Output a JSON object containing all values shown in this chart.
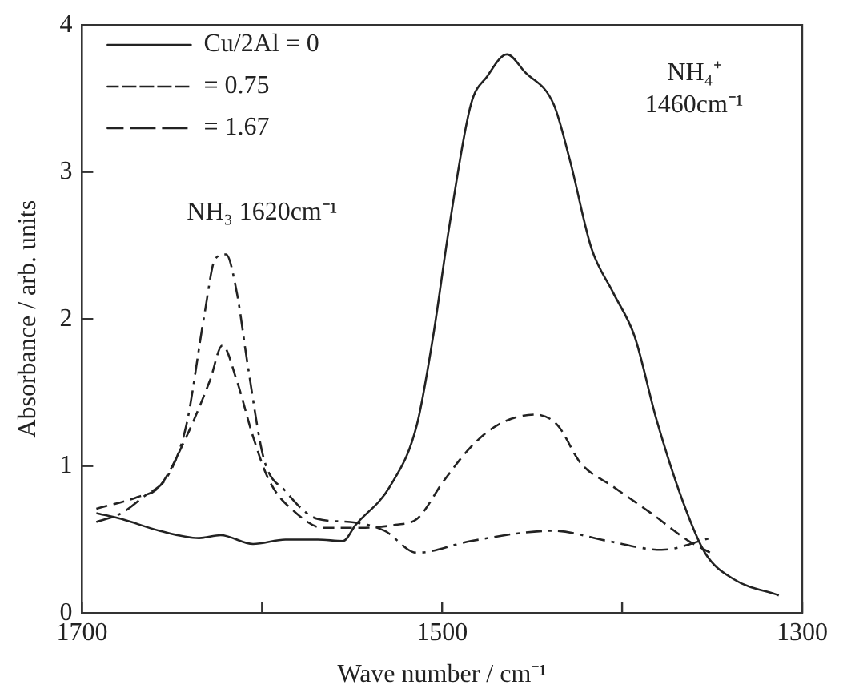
{
  "chart_data": {
    "type": "line",
    "xlabel": "Wave number / cm⁻¹",
    "ylabel": "Absorbance / arb. units",
    "xlim": [
      1700,
      1300
    ],
    "xticks": [
      1700,
      {
        "value": 1600,
        "label": null
      },
      1500,
      {
        "value": 1400,
        "label": null
      },
      1300
    ],
    "ylim": [
      0,
      4
    ],
    "yticks": [
      0,
      1,
      2,
      3,
      4
    ],
    "legend": "top left",
    "marker": "none",
    "annotations": [
      "NH₃ 1620cm⁻¹",
      "NH₄⁺\n1460cm⁻¹"
    ],
    "series": [
      {
        "name": "Cu/2Al = 0",
        "color": "#222222",
        "line_style": "solid",
        "x": [
          1692,
          1678,
          1657,
          1635,
          1623,
          1605,
          1587,
          1569,
          1555,
          1548,
          1529,
          1514,
          1505,
          1496,
          1484,
          1475,
          1464,
          1454,
          1438,
          1429,
          1417,
          1405,
          1393,
          1381,
          1366,
          1354,
          1338,
          1313
        ],
        "values": [
          0.68,
          0.64,
          0.56,
          0.51,
          0.53,
          0.47,
          0.5,
          0.5,
          0.49,
          0.6,
          0.86,
          1.28,
          1.88,
          2.63,
          3.46,
          3.65,
          3.8,
          3.68,
          3.46,
          3.08,
          2.48,
          2.18,
          1.88,
          1.32,
          0.75,
          0.41,
          0.23,
          0.12
        ]
      },
      {
        "name": "= 0.75",
        "color": "#222222",
        "line_style": "dashed",
        "x": [
          1692,
          1669,
          1657,
          1642,
          1629,
          1622,
          1614,
          1605,
          1596,
          1581,
          1566,
          1545,
          1526,
          1514,
          1499,
          1484,
          1469,
          1448,
          1436,
          1423,
          1405,
          1384,
          1363,
          1351
        ],
        "values": [
          0.71,
          0.79,
          0.86,
          1.2,
          1.58,
          1.82,
          1.58,
          1.2,
          0.9,
          0.68,
          0.58,
          0.58,
          0.6,
          0.64,
          0.9,
          1.13,
          1.28,
          1.35,
          1.28,
          1.02,
          0.86,
          0.68,
          0.49,
          0.41
        ]
      },
      {
        "name": "= 1.67",
        "color": "#222222",
        "line_style": "dashdot",
        "x": [
          1692,
          1678,
          1666,
          1652,
          1642,
          1632,
          1626,
          1620,
          1614,
          1608,
          1599,
          1587,
          1569,
          1551,
          1532,
          1514,
          1484,
          1438,
          1408,
          1378,
          1351
        ],
        "values": [
          0.62,
          0.68,
          0.79,
          0.94,
          1.28,
          2.03,
          2.41,
          2.44,
          2.18,
          1.69,
          1.05,
          0.83,
          0.64,
          0.62,
          0.56,
          0.41,
          0.49,
          0.56,
          0.49,
          0.43,
          0.51
        ]
      }
    ]
  }
}
